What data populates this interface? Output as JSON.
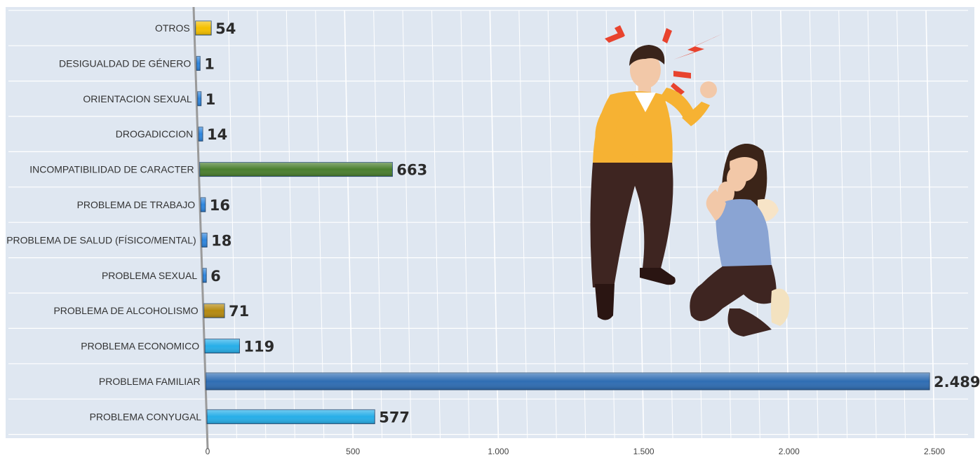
{
  "chart_data": {
    "type": "bar",
    "orientation": "horizontal",
    "categories": [
      "OTROS",
      "DESIGUALDAD DE GÉNERO",
      "ORIENTACION SEXUAL",
      "DROGADICCION",
      "INCOMPATIBILIDAD DE CARACTER",
      "PROBLEMA DE TRABAJO",
      "PROBLEMA DE SALUD (FÍSICO/MENTAL)",
      "PROBLEMA SEXUAL",
      "PROBLEMA DE ALCOHOLISMO",
      "PROBLEMA ECONOMICO",
      "PROBLEMA FAMILIAR",
      "PROBLEMA CONYUGAL"
    ],
    "values": [
      54,
      1,
      1,
      14,
      663,
      16,
      18,
      6,
      71,
      119,
      2489,
      577
    ],
    "value_labels": [
      "54",
      "1",
      "1",
      "14",
      "663",
      "16",
      "18",
      "6",
      "71",
      "119",
      "2.489",
      "577"
    ],
    "bar_colors": [
      "#f5c000",
      "#2e86de",
      "#2e86de",
      "#2e86de",
      "#4a7f2e",
      "#2e86de",
      "#2e86de",
      "#2e86de",
      "#b58a10",
      "#27aee8",
      "#2f6db3",
      "#27aee8"
    ],
    "x_ticks": [
      "0",
      "500",
      "1.000",
      "1.500",
      "2.000",
      "2.500"
    ],
    "x_tick_values": [
      0,
      500,
      1000,
      1500,
      2000,
      2500
    ],
    "xlim": [
      0,
      2500
    ],
    "title": "",
    "xlabel": "",
    "ylabel": "",
    "grid": true,
    "legend": "none"
  },
  "illustration": {
    "icon": "domestic-argument-illustration",
    "colors": {
      "man_shirt": "#f6b233",
      "man_pants": "#3e2521",
      "woman_top": "#8aa4d3",
      "woman_hair": "#3b2418",
      "anger_marks": "#e8432e"
    }
  }
}
